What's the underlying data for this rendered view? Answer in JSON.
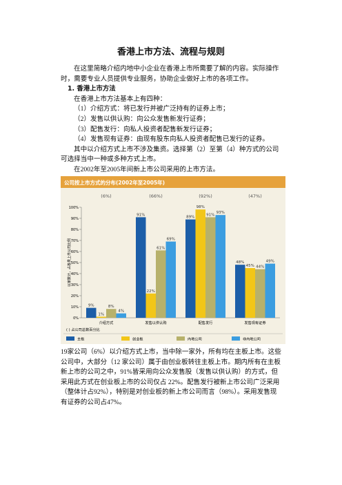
{
  "document": {
    "title": "香港上市方法、流程与规则",
    "intro": "在这里简略介绍内地中小企业在香港上市所需要了解的内容。实际操作时，需要专业人员提供专业服务，协助企业做好上市的各项工作。",
    "section_heading": "1. 香港上市方法",
    "lines": [
      "在香港上市方法基本上有四种：",
      "（1）介绍方式：将已发行并被广泛持有的证券上市；",
      "（2）发售以供认购：向公众发售新发行证券；",
      "（3）配售发行：向私人投资者配售新发行证券；",
      "（4）发售现有证券：由现有股东向私人投资者配售已发行的证券。",
      "其中以介绍方式上市不涉及集资。选择第（2）至第（4）种方式的公司可选择当中一种或多种方式上市。",
      "在2002年至2005年间新上市公司采用的上市方法。"
    ],
    "conclusion": "19家公司（6%）以介绍方式上市，当中除一家外，所有均在主板上市。这些公司中，大部分（12 家公司）属于由创业板转往主板上市。期内所有在主板新上市的公司之中，91%皆采用向公众发售股（发售以供认购）的方式，但采用此方式在创业板上市的公司仅占 22%。配售发行被新上市公司广泛采用（整体计占92%），特别是对创业板的新上市公司而言（98%）。采用发售现有证券的公司占47%。"
  },
  "chart_data": {
    "type": "bar",
    "title": "公司按上市方式的分布(2002年至2005年)",
    "ylabel": "以家数计，占各类上市公司比例",
    "note": "( ) 占公司总数百分比",
    "categories": [
      "介绍方式",
      "发售以供认购",
      "配售发行",
      "发售现有证券"
    ],
    "category_notes": [
      "(6%)",
      "(66%)",
      "(92%)",
      "(47%)"
    ],
    "series": [
      {
        "name": "主板",
        "color": "#1c5ea8",
        "values": [
          9,
          91,
          89,
          48
        ],
        "value_labels": [
          "9%",
          "91%",
          "89%",
          "48%"
        ]
      },
      {
        "name": "创业板",
        "color": "#f2c618",
        "values": [
          1,
          22,
          98,
          45
        ],
        "value_labels": [
          "1%",
          "22%",
          "98%",
          "45%"
        ]
      },
      {
        "name": "内地公司",
        "color": "#b7b16b",
        "values": [
          8,
          61,
          91,
          44
        ],
        "value_labels": [
          "8%",
          "61%",
          "91%",
          "44%"
        ]
      },
      {
        "name": "非内地公司",
        "color": "#3b9de0",
        "values": [
          4,
          69,
          93,
          49
        ],
        "value_labels": [
          "4%",
          "69%",
          "93%",
          "49%"
        ]
      }
    ],
    "ylim": [
      0,
      100
    ],
    "yticks": [
      {
        "value": 0,
        "label": "0%"
      },
      {
        "value": 10,
        "label": "10%"
      },
      {
        "value": 20,
        "label": "20%"
      },
      {
        "value": 30,
        "label": "30%"
      },
      {
        "value": 40,
        "label": "40%"
      },
      {
        "value": 50,
        "label": "50%"
      },
      {
        "value": 60,
        "label": "60%"
      },
      {
        "value": 70,
        "label": "70%"
      },
      {
        "value": 80,
        "label": "80%"
      },
      {
        "value": 90,
        "label": "90%"
      },
      {
        "value": 100,
        "label": "100%"
      }
    ],
    "grid": false
  }
}
